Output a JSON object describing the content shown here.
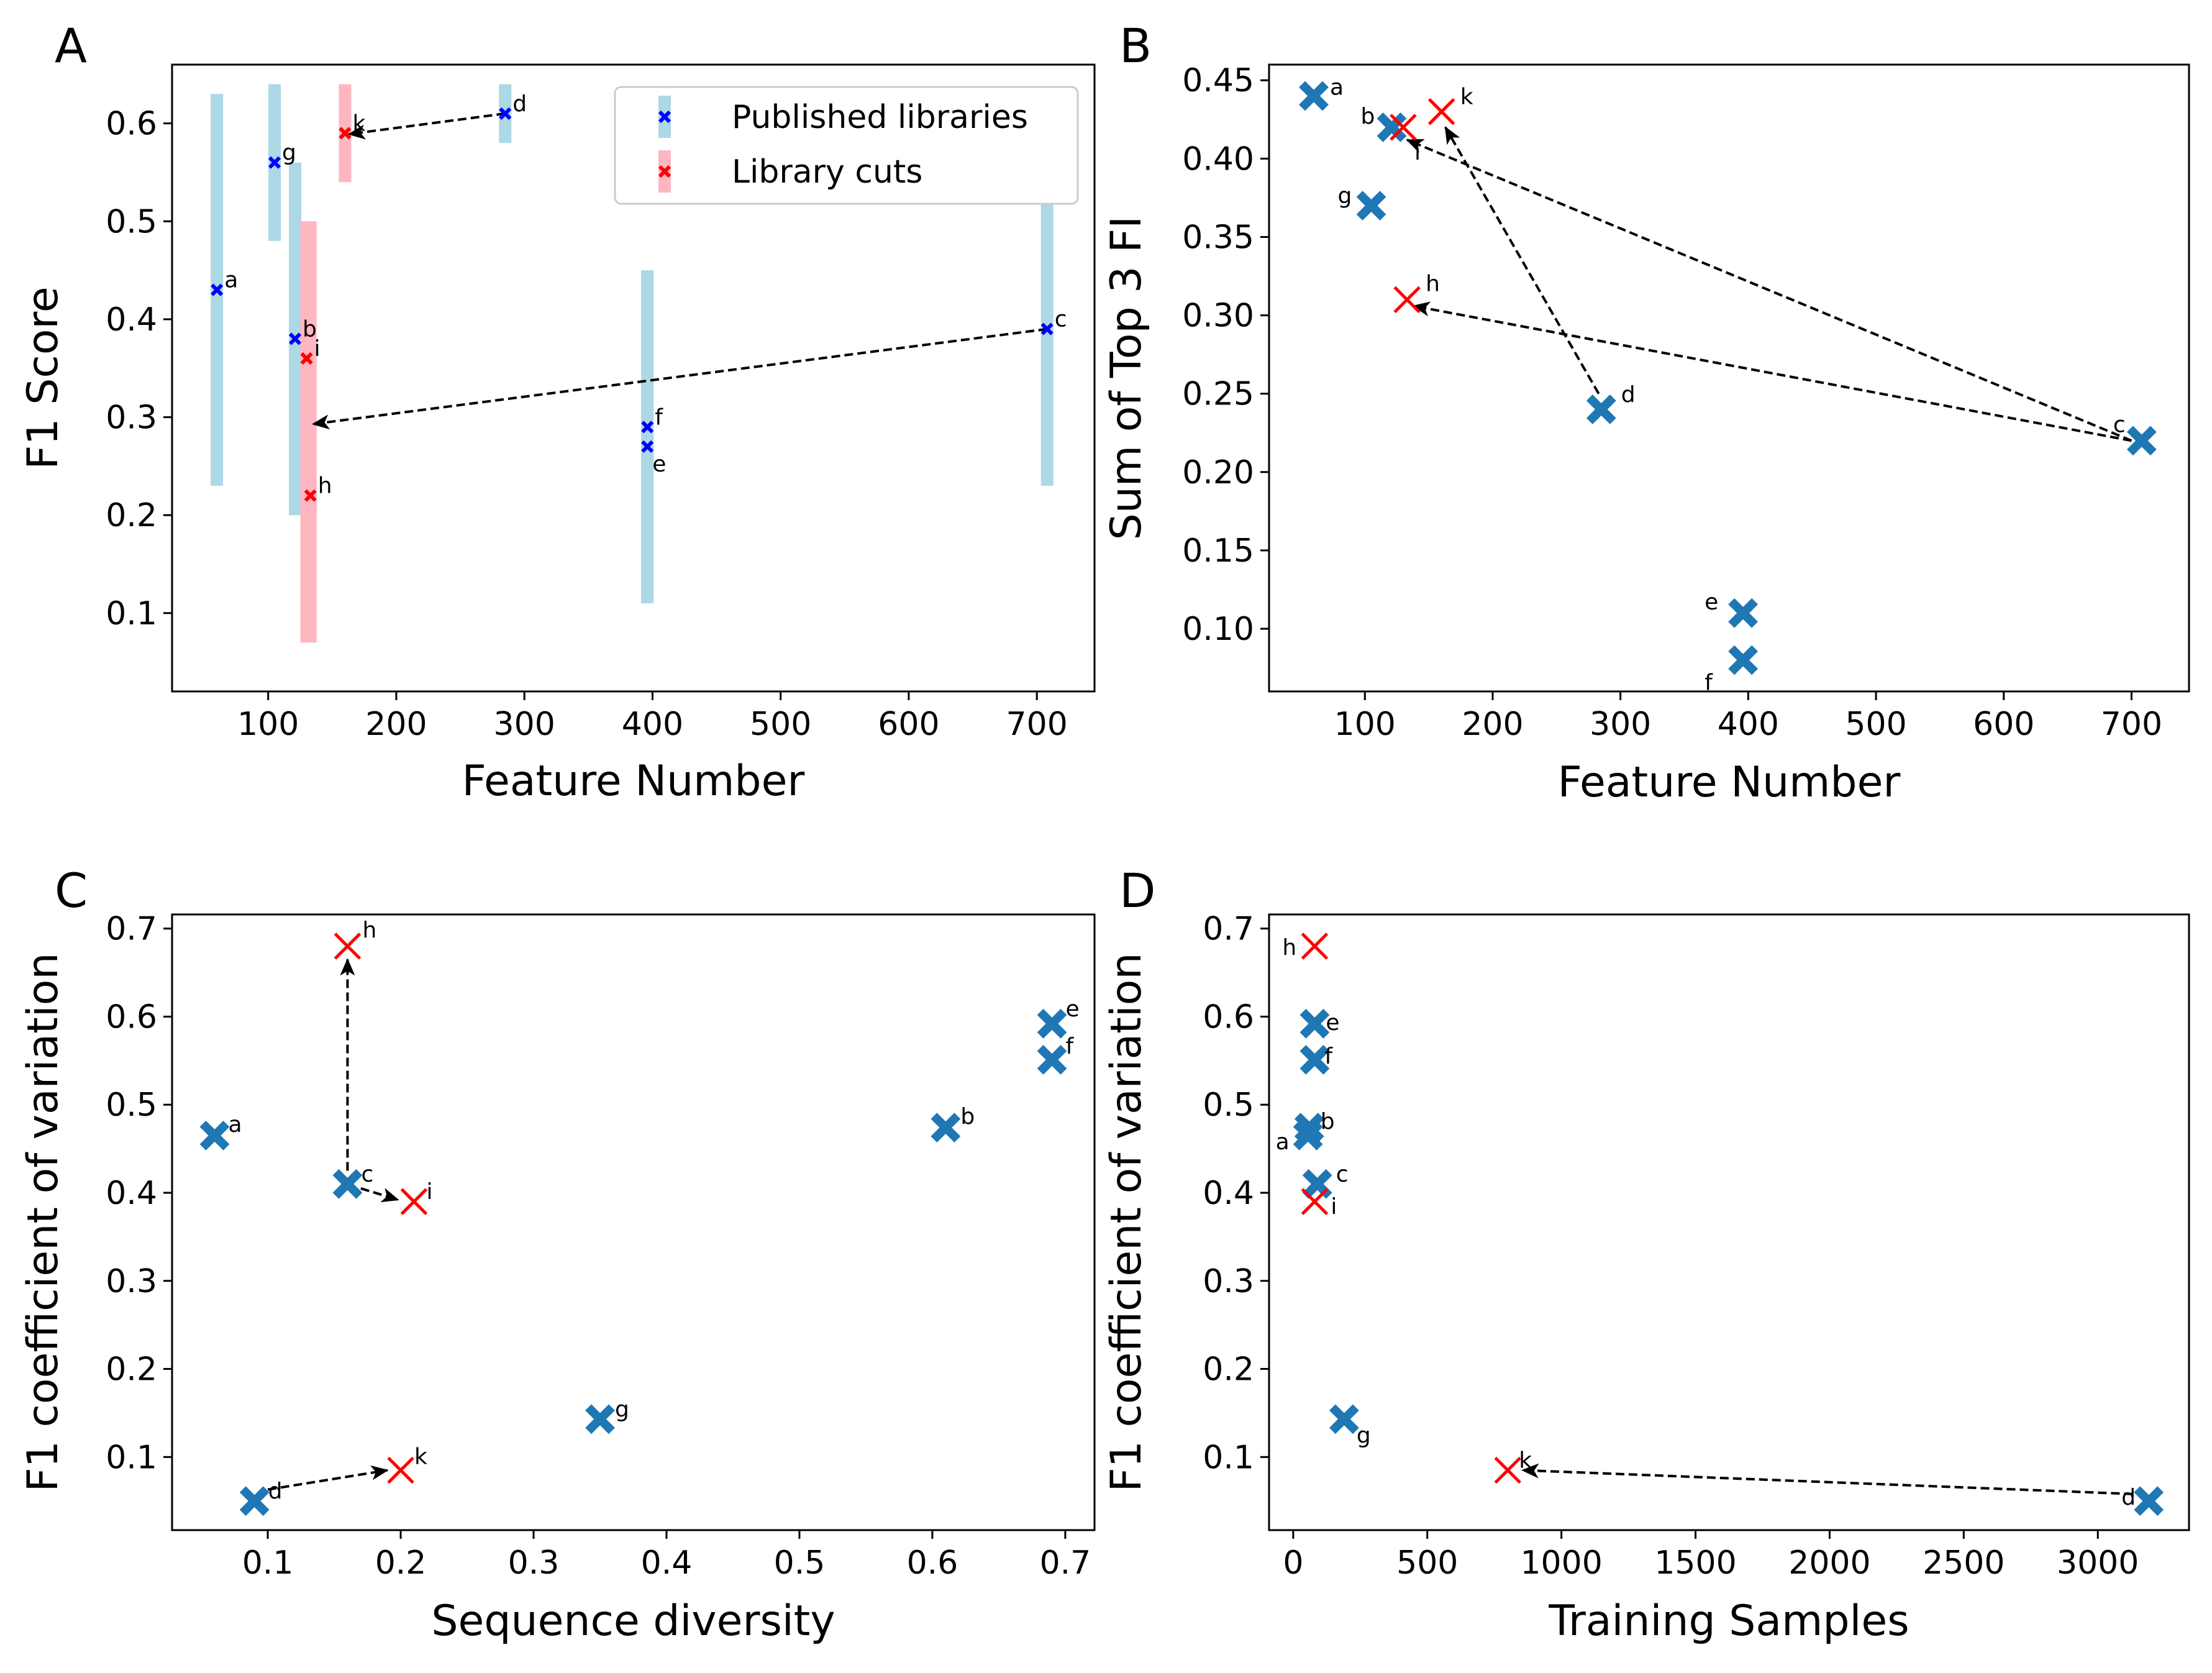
{
  "colors": {
    "published": "#1f77b4",
    "cut": "#ff0000",
    "published_small": "#0000ff",
    "published_band": "#add8e6",
    "cut_band": "#ffb6c1",
    "arrow": "#000000"
  },
  "chart_data": [
    {
      "panel": "A",
      "type": "scatter",
      "xlabel": "Feature Number",
      "ylabel": "F1 Score",
      "xlim": [
        25,
        745
      ],
      "ylim": [
        0.02,
        0.66
      ],
      "xticks": [
        100,
        200,
        300,
        400,
        500,
        600,
        700
      ],
      "yticks": [
        0.1,
        0.2,
        0.3,
        0.4,
        0.5,
        0.6
      ],
      "legend": {
        "position": "top-right",
        "entries": [
          {
            "label": "Published libraries",
            "series": "published"
          },
          {
            "label": "Library cuts",
            "series": "cut"
          }
        ]
      },
      "points": [
        {
          "label": "a",
          "x": 60,
          "y": 0.43,
          "low": 0.23,
          "high": 0.63,
          "series": "published"
        },
        {
          "label": "g",
          "x": 105,
          "y": 0.56,
          "low": 0.48,
          "high": 0.64,
          "series": "published"
        },
        {
          "label": "b",
          "x": 121,
          "y": 0.38,
          "low": 0.2,
          "high": 0.56,
          "series": "published"
        },
        {
          "label": "i",
          "x": 130,
          "y": 0.36,
          "low": 0.07,
          "high": 0.5,
          "series": "cut"
        },
        {
          "label": "h",
          "x": 133,
          "y": 0.22,
          "low": 0.07,
          "high": 0.5,
          "series": "cut"
        },
        {
          "label": "k",
          "x": 160,
          "y": 0.59,
          "low": 0.54,
          "high": 0.64,
          "series": "cut"
        },
        {
          "label": "d",
          "x": 285,
          "y": 0.61,
          "low": 0.58,
          "high": 0.64,
          "series": "published"
        },
        {
          "label": "f",
          "x": 396,
          "y": 0.29,
          "low": 0.11,
          "high": 0.45,
          "series": "published"
        },
        {
          "label": "e",
          "x": 396,
          "y": 0.27,
          "low": 0.11,
          "high": 0.45,
          "series": "published"
        },
        {
          "label": "c",
          "x": 708,
          "y": 0.39,
          "low": 0.23,
          "high": 0.55,
          "series": "published"
        }
      ],
      "arrows": [
        {
          "from": [
            285,
            0.61
          ],
          "to": [
            163,
            0.589
          ]
        },
        {
          "from": [
            708,
            0.39
          ],
          "to": [
            135,
            0.293
          ]
        }
      ]
    },
    {
      "panel": "B",
      "type": "scatter",
      "xlabel": "Feature Number",
      "ylabel": "Sum of Top 3 FI",
      "xlim": [
        25,
        745
      ],
      "ylim": [
        0.06,
        0.46
      ],
      "xticks": [
        100,
        200,
        300,
        400,
        500,
        600,
        700
      ],
      "yticks": [
        0.1,
        0.15,
        0.2,
        0.25,
        0.3,
        0.35,
        0.4,
        0.45
      ],
      "yticklabels": [
        "0.10",
        "0.15",
        "0.20",
        "0.25",
        "0.30",
        "0.35",
        "0.40",
        "0.45"
      ],
      "points": [
        {
          "label": "a",
          "x": 60,
          "y": 0.44,
          "series": "published"
        },
        {
          "label": "b",
          "x": 121,
          "y": 0.42,
          "series": "published"
        },
        {
          "label": "i",
          "x": 130,
          "y": 0.42,
          "series": "cut"
        },
        {
          "label": "k",
          "x": 160,
          "y": 0.43,
          "series": "cut"
        },
        {
          "label": "g",
          "x": 105,
          "y": 0.37,
          "series": "published"
        },
        {
          "label": "h",
          "x": 133,
          "y": 0.31,
          "series": "cut"
        },
        {
          "label": "d",
          "x": 285,
          "y": 0.24,
          "series": "published"
        },
        {
          "label": "c",
          "x": 708,
          "y": 0.22,
          "series": "published"
        },
        {
          "label": "e",
          "x": 396,
          "y": 0.11,
          "series": "published"
        },
        {
          "label": "f",
          "x": 396,
          "y": 0.08,
          "series": "published"
        }
      ],
      "arrows": [
        {
          "from": [
            700,
            0.22
          ],
          "to": [
            133,
            0.412
          ]
        },
        {
          "from": [
            700,
            0.22
          ],
          "to": [
            138,
            0.306
          ]
        },
        {
          "from": [
            283,
            0.25
          ],
          "to": [
            163,
            0.42
          ]
        }
      ]
    },
    {
      "panel": "C",
      "type": "scatter",
      "xlabel": "Sequence diversity",
      "ylabel": "F1 coefficient of variation",
      "xlim": [
        0.028,
        0.722
      ],
      "ylim": [
        0.017,
        0.716
      ],
      "xticks": [
        0.1,
        0.2,
        0.3,
        0.4,
        0.5,
        0.6,
        0.7
      ],
      "yticks": [
        0.1,
        0.2,
        0.3,
        0.4,
        0.5,
        0.6,
        0.7
      ],
      "points": [
        {
          "label": "a",
          "x": 0.06,
          "y": 0.465,
          "series": "published"
        },
        {
          "label": "h",
          "x": 0.16,
          "y": 0.68,
          "series": "cut"
        },
        {
          "label": "c",
          "x": 0.16,
          "y": 0.41,
          "series": "published"
        },
        {
          "label": "i",
          "x": 0.21,
          "y": 0.39,
          "series": "cut"
        },
        {
          "label": "d",
          "x": 0.09,
          "y": 0.05,
          "series": "published"
        },
        {
          "label": "k",
          "x": 0.2,
          "y": 0.085,
          "series": "cut"
        },
        {
          "label": "g",
          "x": 0.35,
          "y": 0.143,
          "series": "published"
        },
        {
          "label": "b",
          "x": 0.61,
          "y": 0.474,
          "series": "published"
        },
        {
          "label": "e",
          "x": 0.69,
          "y": 0.592,
          "series": "published"
        },
        {
          "label": "f",
          "x": 0.69,
          "y": 0.551,
          "series": "published"
        }
      ],
      "arrows": [
        {
          "from": [
            0.16,
            0.425
          ],
          "to": [
            0.16,
            0.665
          ]
        },
        {
          "from": [
            0.17,
            0.405
          ],
          "to": [
            0.198,
            0.392
          ]
        },
        {
          "from": [
            0.1,
            0.063
          ],
          "to": [
            0.19,
            0.085
          ]
        }
      ]
    },
    {
      "panel": "D",
      "type": "scatter",
      "xlabel": "Training Samples",
      "ylabel": "F1 coefficient of variation",
      "xlim": [
        -90,
        3340
      ],
      "ylim": [
        0.017,
        0.716
      ],
      "xticks": [
        0,
        500,
        1000,
        1500,
        2000,
        2500,
        3000
      ],
      "yticks": [
        0.1,
        0.2,
        0.3,
        0.4,
        0.5,
        0.6,
        0.7
      ],
      "points": [
        {
          "label": "h",
          "x": 80,
          "y": 0.68,
          "series": "cut"
        },
        {
          "label": "e",
          "x": 80,
          "y": 0.592,
          "series": "published"
        },
        {
          "label": "f",
          "x": 80,
          "y": 0.551,
          "series": "published"
        },
        {
          "label": "b",
          "x": 60,
          "y": 0.474,
          "series": "published"
        },
        {
          "label": "a",
          "x": 55,
          "y": 0.465,
          "series": "published"
        },
        {
          "label": "c",
          "x": 90,
          "y": 0.41,
          "series": "published"
        },
        {
          "label": "i",
          "x": 80,
          "y": 0.39,
          "series": "cut"
        },
        {
          "label": "g",
          "x": 190,
          "y": 0.143,
          "series": "published"
        },
        {
          "label": "k",
          "x": 800,
          "y": 0.085,
          "series": "cut"
        },
        {
          "label": "d",
          "x": 3190,
          "y": 0.05,
          "series": "published"
        }
      ],
      "arrows": [
        {
          "from": [
            3130,
            0.058
          ],
          "to": [
            855,
            0.085
          ]
        }
      ]
    }
  ]
}
